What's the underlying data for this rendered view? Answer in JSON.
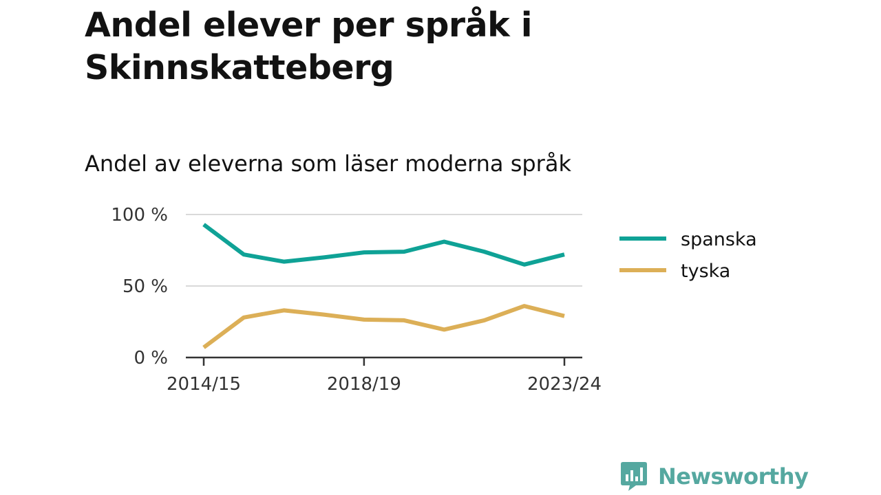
{
  "header": {
    "title": "Andel elever per språk i Skinnskatteberg",
    "subtitle": "Andel av eleverna som läser moderna språk"
  },
  "brand": {
    "name": "Newsworthy",
    "color": "#55a8a0",
    "icon": "newsworthy-logo-icon"
  },
  "chart_data": {
    "type": "line",
    "title": "Andel elever per språk i Skinnskatteberg",
    "subtitle": "Andel av eleverna som läser moderna språk",
    "x": [
      "2014/15",
      "2015/16",
      "2016/17",
      "2017/18",
      "2018/19",
      "2019/20",
      "2020/21",
      "2021/22",
      "2022/23",
      "2023/24"
    ],
    "x_tick_labels": [
      "2014/15",
      "2018/19",
      "2023/24"
    ],
    "y_ticks": [
      0,
      50,
      100
    ],
    "y_tick_labels": [
      "0 %",
      "50 %",
      "100 %"
    ],
    "ylim": [
      0,
      100
    ],
    "y_unit": "%",
    "grid": true,
    "legend_position": "right",
    "series": [
      {
        "name": "spanska",
        "color": "#0fa296",
        "values": [
          93,
          72,
          67,
          70,
          73.5,
          74,
          81,
          74,
          65,
          72
        ]
      },
      {
        "name": "tyska",
        "color": "#dcaf57",
        "values": [
          7,
          28,
          33,
          30,
          26.5,
          26,
          19.5,
          26,
          36,
          29
        ]
      }
    ]
  }
}
